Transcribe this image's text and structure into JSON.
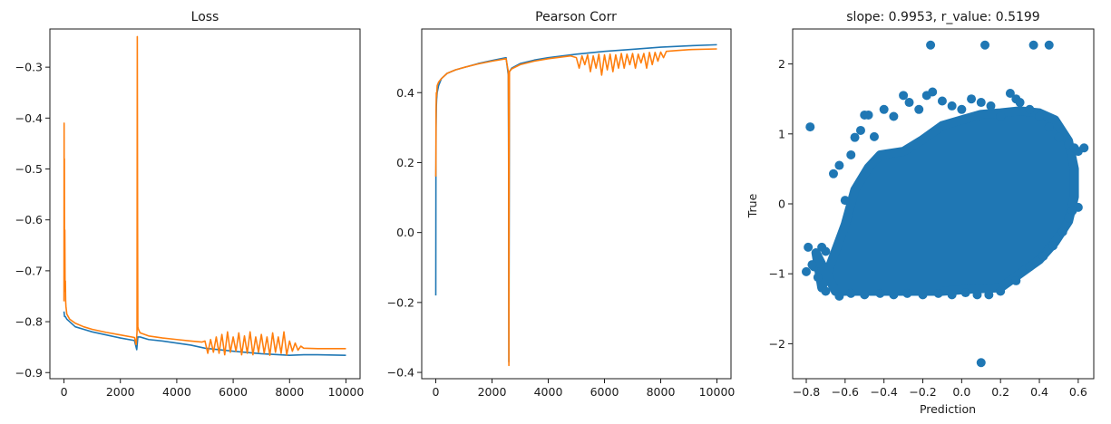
{
  "colors": {
    "series_blue": "#1f77b4",
    "series_orange": "#ff7f0e",
    "axis": "#1a1a1a",
    "background": "#ffffff"
  },
  "chart_data": [
    {
      "type": "line",
      "title": "Loss",
      "xlabel": "",
      "ylabel": "",
      "xlim": [
        -500,
        10500
      ],
      "ylim": [
        -0.912,
        -0.225
      ],
      "xticks": [
        0,
        2000,
        4000,
        6000,
        8000,
        10000
      ],
      "xtick_labels": [
        "0",
        "2000",
        "4000",
        "6000",
        "8000",
        "10000"
      ],
      "yticks": [
        -0.9,
        -0.8,
        -0.7,
        -0.6,
        -0.5,
        -0.4,
        -0.3
      ],
      "ytick_labels": [
        "−0.9",
        "−0.8",
        "−0.7",
        "−0.6",
        "−0.5",
        "−0.4",
        "−0.3"
      ],
      "grid": false,
      "series": [
        {
          "color": "#1f77b4",
          "x": [
            0,
            20,
            50,
            100,
            200,
            400,
            700,
            1000,
            1500,
            2000,
            2500,
            2580,
            2620,
            2700,
            3000,
            3500,
            4000,
            4500,
            5000,
            6000,
            7000,
            8000,
            8500,
            9000,
            10000
          ],
          "y": [
            -0.78,
            -0.79,
            -0.79,
            -0.795,
            -0.8,
            -0.81,
            -0.815,
            -0.82,
            -0.826,
            -0.832,
            -0.837,
            -0.855,
            -0.83,
            -0.83,
            -0.835,
            -0.838,
            -0.842,
            -0.846,
            -0.852,
            -0.858,
            -0.863,
            -0.866,
            -0.865,
            -0.865,
            -0.866
          ]
        },
        {
          "color": "#ff7f0e",
          "x": [
            0,
            5,
            10,
            15,
            20,
            30,
            40,
            50,
            60,
            70,
            100,
            150,
            200,
            400,
            700,
            1000,
            1500,
            2000,
            2500,
            2560,
            2590,
            2600,
            2610,
            2620,
            2640,
            2700,
            3000,
            3500,
            4000,
            4500,
            4900,
            5000,
            5100,
            5200,
            5300,
            5400,
            5500,
            5600,
            5700,
            5800,
            5900,
            6000,
            6100,
            6200,
            6300,
            6400,
            6500,
            6600,
            6700,
            6800,
            6900,
            7000,
            7100,
            7200,
            7300,
            7400,
            7500,
            7600,
            7700,
            7800,
            7900,
            8000,
            8100,
            8200,
            8300,
            8400,
            8500,
            9000,
            10000
          ],
          "y": [
            -0.76,
            -0.41,
            -0.7,
            -0.48,
            -0.7,
            -0.62,
            -0.74,
            -0.72,
            -0.76,
            -0.77,
            -0.785,
            -0.79,
            -0.795,
            -0.803,
            -0.81,
            -0.815,
            -0.821,
            -0.826,
            -0.831,
            -0.845,
            -0.82,
            -0.24,
            -0.6,
            -0.81,
            -0.815,
            -0.822,
            -0.828,
            -0.832,
            -0.835,
            -0.838,
            -0.84,
            -0.838,
            -0.862,
            -0.835,
            -0.86,
            -0.83,
            -0.862,
            -0.825,
            -0.865,
            -0.82,
            -0.86,
            -0.83,
            -0.858,
            -0.822,
            -0.865,
            -0.828,
            -0.862,
            -0.82,
            -0.865,
            -0.83,
            -0.86,
            -0.825,
            -0.862,
            -0.83,
            -0.866,
            -0.822,
            -0.86,
            -0.83,
            -0.862,
            -0.82,
            -0.865,
            -0.838,
            -0.858,
            -0.842,
            -0.856,
            -0.848,
            -0.852,
            -0.853,
            -0.853
          ]
        }
      ]
    },
    {
      "type": "line",
      "title": "Pearson Corr",
      "xlabel": "",
      "ylabel": "",
      "xlim": [
        -500,
        10500
      ],
      "ylim": [
        -0.418,
        0.582
      ],
      "xticks": [
        0,
        2000,
        4000,
        6000,
        8000,
        10000
      ],
      "xtick_labels": [
        "0",
        "2000",
        "4000",
        "6000",
        "8000",
        "10000"
      ],
      "yticks": [
        -0.4,
        -0.2,
        0.0,
        0.2,
        0.4
      ],
      "ytick_labels": [
        "−0.4",
        "−0.2",
        "0.0",
        "0.2",
        "0.4"
      ],
      "grid": false,
      "series": [
        {
          "color": "#1f77b4",
          "x": [
            0,
            5,
            10,
            20,
            30,
            50,
            100,
            200,
            400,
            700,
            1000,
            1500,
            2000,
            2500,
            2580,
            2590,
            2600,
            2620,
            2700,
            3000,
            3500,
            4000,
            5000,
            6000,
            7000,
            8000,
            9000,
            10000
          ],
          "y": [
            -0.18,
            0.15,
            0.3,
            0.36,
            0.38,
            0.4,
            0.42,
            0.44,
            0.455,
            0.465,
            0.472,
            0.483,
            0.492,
            0.5,
            0.45,
            0.2,
            -0.37,
            0.46,
            0.47,
            0.483,
            0.493,
            0.5,
            0.51,
            0.518,
            0.524,
            0.53,
            0.534,
            0.537
          ]
        },
        {
          "color": "#ff7f0e",
          "x": [
            0,
            5,
            10,
            20,
            30,
            50,
            100,
            200,
            400,
            700,
            1000,
            1500,
            2000,
            2500,
            2580,
            2590,
            2600,
            2610,
            2620,
            2700,
            3000,
            3500,
            4000,
            4800,
            5000,
            5100,
            5200,
            5300,
            5400,
            5500,
            5600,
            5700,
            5800,
            5900,
            6000,
            6100,
            6200,
            6300,
            6400,
            6500,
            6600,
            6700,
            6800,
            6900,
            7000,
            7100,
            7200,
            7300,
            7400,
            7500,
            7600,
            7700,
            7800,
            7900,
            8000,
            8100,
            8200,
            8500,
            9000,
            10000
          ],
          "y": [
            0.16,
            0.2,
            0.35,
            0.4,
            0.39,
            0.42,
            0.43,
            0.44,
            0.455,
            0.465,
            0.472,
            0.482,
            0.49,
            0.497,
            0.46,
            0.3,
            -0.38,
            0.2,
            0.46,
            0.468,
            0.48,
            0.49,
            0.497,
            0.505,
            0.5,
            0.47,
            0.505,
            0.48,
            0.508,
            0.46,
            0.505,
            0.47,
            0.51,
            0.45,
            0.508,
            0.465,
            0.51,
            0.46,
            0.508,
            0.47,
            0.512,
            0.47,
            0.51,
            0.48,
            0.512,
            0.47,
            0.51,
            0.485,
            0.512,
            0.47,
            0.515,
            0.48,
            0.515,
            0.49,
            0.516,
            0.5,
            0.518,
            0.52,
            0.523,
            0.525
          ]
        }
      ]
    },
    {
      "type": "scatter",
      "title": "slope: 0.9953, r_value: 0.5199",
      "xlabel": "Prediction",
      "ylabel": "True",
      "xlim": [
        -0.87,
        0.68
      ],
      "ylim": [
        -2.5,
        2.5
      ],
      "xticks": [
        -0.8,
        -0.6,
        -0.4,
        -0.2,
        0.0,
        0.2,
        0.4,
        0.6
      ],
      "xtick_labels": [
        "−0.8",
        "−0.6",
        "−0.4",
        "−0.2",
        "0.0",
        "0.2",
        "0.4",
        "0.6"
      ],
      "yticks": [
        -2,
        -1,
        0,
        1,
        2
      ],
      "ytick_labels": [
        "−2",
        "−1",
        "0",
        "1",
        "2"
      ],
      "grid": false,
      "color": "#1f77b4",
      "points": [
        [
          -0.8,
          -0.97
        ],
        [
          -0.78,
          1.1
        ],
        [
          -0.79,
          -0.62
        ],
        [
          -0.76,
          -0.9
        ],
        [
          -0.74,
          -0.85
        ],
        [
          -0.72,
          -0.62
        ],
        [
          -0.7,
          -0.68
        ],
        [
          -0.66,
          0.43
        ],
        [
          -0.63,
          0.55
        ],
        [
          -0.6,
          0.05
        ],
        [
          -0.57,
          0.7
        ],
        [
          -0.55,
          0.95
        ],
        [
          -0.52,
          1.05
        ],
        [
          -0.5,
          1.27
        ],
        [
          -0.48,
          1.27
        ],
        [
          -0.45,
          0.96
        ],
        [
          -0.4,
          1.35
        ],
        [
          -0.35,
          1.25
        ],
        [
          -0.3,
          1.55
        ],
        [
          -0.27,
          1.45
        ],
        [
          -0.22,
          1.35
        ],
        [
          -0.18,
          1.55
        ],
        [
          -0.15,
          1.6
        ],
        [
          -0.1,
          1.47
        ],
        [
          -0.05,
          1.4
        ],
        [
          0.0,
          1.35
        ],
        [
          0.05,
          1.5
        ],
        [
          0.1,
          1.45
        ],
        [
          0.15,
          1.4
        ],
        [
          0.2,
          1.25
        ],
        [
          0.25,
          1.58
        ],
        [
          0.28,
          1.5
        ],
        [
          0.3,
          1.45
        ],
        [
          0.35,
          1.35
        ],
        [
          0.4,
          1.25
        ],
        [
          0.45,
          1.1
        ],
        [
          0.5,
          0.95
        ],
        [
          0.55,
          0.85
        ],
        [
          0.58,
          0.8
        ],
        [
          0.6,
          0.75
        ],
        [
          0.63,
          0.8
        ],
        [
          0.6,
          -0.05
        ],
        [
          0.57,
          -0.1
        ],
        [
          0.55,
          -0.2
        ],
        [
          0.52,
          -0.4
        ],
        [
          0.47,
          -0.6
        ],
        [
          0.42,
          -0.75
        ],
        [
          0.35,
          -0.9
        ],
        [
          0.28,
          -1.1
        ],
        [
          0.2,
          -1.25
        ],
        [
          0.14,
          -1.3
        ],
        [
          0.08,
          -1.3
        ],
        [
          0.02,
          -1.27
        ],
        [
          -0.05,
          -1.3
        ],
        [
          -0.12,
          -1.28
        ],
        [
          -0.2,
          -1.3
        ],
        [
          -0.28,
          -1.28
        ],
        [
          -0.35,
          -1.3
        ],
        [
          -0.42,
          -1.28
        ],
        [
          -0.5,
          -1.3
        ],
        [
          -0.57,
          -1.28
        ],
        [
          -0.63,
          -1.32
        ],
        [
          -0.7,
          -1.25
        ],
        [
          -0.74,
          -1.05
        ],
        [
          -0.77,
          -0.87
        ],
        [
          -0.16,
          2.27
        ],
        [
          0.12,
          2.27
        ],
        [
          0.37,
          2.27
        ],
        [
          0.45,
          2.27
        ],
        [
          0.1,
          -2.27
        ]
      ],
      "dense_core": [
        [
          -0.75,
          -0.7
        ],
        [
          -0.72,
          -1.2
        ],
        [
          -0.6,
          -0.3
        ],
        [
          -0.55,
          0.2
        ],
        [
          -0.48,
          0.52
        ],
        [
          -0.42,
          0.7
        ],
        [
          -0.3,
          0.75
        ],
        [
          -0.2,
          0.92
        ],
        [
          -0.1,
          1.12
        ],
        [
          0.0,
          1.2
        ],
        [
          0.1,
          1.28
        ],
        [
          0.2,
          1.3
        ],
        [
          0.3,
          1.33
        ],
        [
          0.4,
          1.3
        ],
        [
          0.48,
          1.2
        ],
        [
          0.55,
          0.9
        ],
        [
          0.58,
          0.5
        ],
        [
          0.58,
          0.1
        ],
        [
          0.55,
          -0.25
        ],
        [
          0.48,
          -0.55
        ],
        [
          0.4,
          -0.8
        ],
        [
          0.3,
          -1.0
        ],
        [
          0.2,
          -1.2
        ],
        [
          0.05,
          -1.22
        ],
        [
          -0.1,
          -1.25
        ],
        [
          -0.3,
          -1.25
        ],
        [
          -0.5,
          -1.25
        ],
        [
          -0.65,
          -1.25
        ]
      ]
    }
  ]
}
